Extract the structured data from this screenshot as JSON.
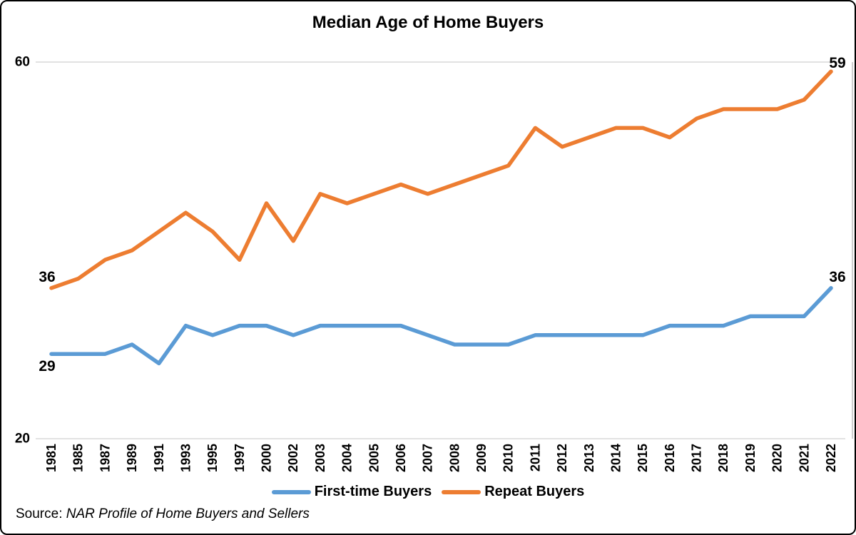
{
  "title": "Median Age of Home Buyers",
  "source": {
    "prefix": "Source: ",
    "text": "NAR Profile of Home Buyers and Sellers"
  },
  "colors": {
    "first_time": "#5B9BD5",
    "repeat": "#ED7D31",
    "gridline": "#D9D9D9",
    "plot_right_border": "#BFBFBF",
    "text": "#000000"
  },
  "legend": {
    "items": [
      {
        "label": "First-time Buyers",
        "color": "#5B9BD5"
      },
      {
        "label": "Repeat Buyers",
        "color": "#ED7D31"
      }
    ]
  },
  "chart_data": {
    "type": "line",
    "title": "Median Age of Home Buyers",
    "categories": [
      "1981",
      "1985",
      "1987",
      "1989",
      "1991",
      "1993",
      "1995",
      "1997",
      "2000",
      "2002",
      "2003",
      "2004",
      "2005",
      "2006",
      "2007",
      "2008",
      "2009",
      "2010",
      "2011",
      "2012",
      "2013",
      "2014",
      "2015",
      "2016",
      "2017",
      "2018",
      "2019",
      "2020",
      "2021",
      "2022"
    ],
    "series": [
      {
        "name": "First-time Buyers",
        "color": "#5B9BD5",
        "values": [
          29,
          29,
          29,
          30,
          28,
          32,
          31,
          32,
          32,
          31,
          32,
          32,
          32,
          32,
          31,
          30,
          30,
          30,
          31,
          31,
          31,
          31,
          31,
          32,
          32,
          32,
          33,
          33,
          33,
          36
        ]
      },
      {
        "name": "Repeat Buyers",
        "color": "#ED7D31",
        "values": [
          36,
          37,
          39,
          40,
          42,
          44,
          42,
          39,
          45,
          41,
          46,
          45,
          46,
          47,
          46,
          47,
          48,
          49,
          53,
          51,
          52,
          53,
          53,
          52,
          54,
          55,
          55,
          55,
          56,
          59
        ]
      }
    ],
    "ylim": [
      20,
      60
    ],
    "yticks": [
      60,
      20
    ],
    "grid": "horizontal-min-max-only",
    "legend_position": "bottom",
    "point_labels": [
      {
        "series": 1,
        "point": "first",
        "text": "36",
        "placement": "above-left"
      },
      {
        "series": 1,
        "point": "last",
        "text": "59",
        "placement": "above-right"
      },
      {
        "series": 0,
        "point": "first",
        "text": "29",
        "placement": "below-left"
      },
      {
        "series": 0,
        "point": "last",
        "text": "36",
        "placement": "above-right"
      }
    ]
  }
}
